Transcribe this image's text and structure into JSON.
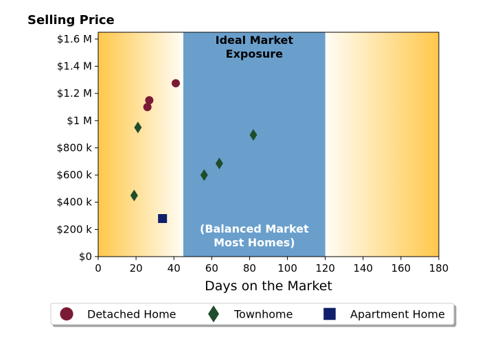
{
  "chart_data": {
    "type": "scatter",
    "title": "Selling Price",
    "xlabel": "Days on the Market",
    "ylabel": "",
    "xlim": [
      0,
      180
    ],
    "ylim": [
      0,
      1650000
    ],
    "xticks": [
      0,
      20,
      40,
      60,
      80,
      100,
      120,
      140,
      160,
      180
    ],
    "xtick_labels": [
      "0",
      "20",
      "40",
      "60",
      "80",
      "100",
      "120",
      "140",
      "160",
      "180"
    ],
    "yticks": [
      0,
      200000,
      400000,
      600000,
      800000,
      1000000,
      1200000,
      1400000,
      1600000
    ],
    "ytick_labels": [
      "$0",
      "$200 k",
      "$400 k",
      "$600 k",
      "$800 k",
      "$1 M",
      "$1.2 M",
      "$1.4 M",
      "$1.6 M"
    ],
    "grid": false,
    "legend_position": "bottom",
    "band": {
      "x_range": [
        45,
        120
      ],
      "color": "#6a9fcc",
      "top_label": [
        "Ideal Market",
        "Exposure"
      ],
      "bottom_label": [
        "(Balanced Market",
        "Most Homes)"
      ]
    },
    "background_gradient": {
      "edge_color": "#ffc84a",
      "center_color": "#fffdf6"
    },
    "series": [
      {
        "name": "Detached Home",
        "marker": "circle",
        "color": "#7a1a35",
        "points": [
          [
            26,
            1100000
          ],
          [
            27,
            1150000
          ],
          [
            41,
            1275000
          ]
        ]
      },
      {
        "name": "Townhome",
        "marker": "diamond",
        "color": "#1e4d2b",
        "points": [
          [
            19,
            450000
          ],
          [
            21,
            950000
          ],
          [
            56,
            600000
          ],
          [
            64,
            685000
          ],
          [
            82,
            895000
          ]
        ]
      },
      {
        "name": "Apartment Home",
        "marker": "square",
        "color": "#0f1f6b",
        "points": [
          [
            34,
            280000
          ]
        ]
      }
    ]
  }
}
